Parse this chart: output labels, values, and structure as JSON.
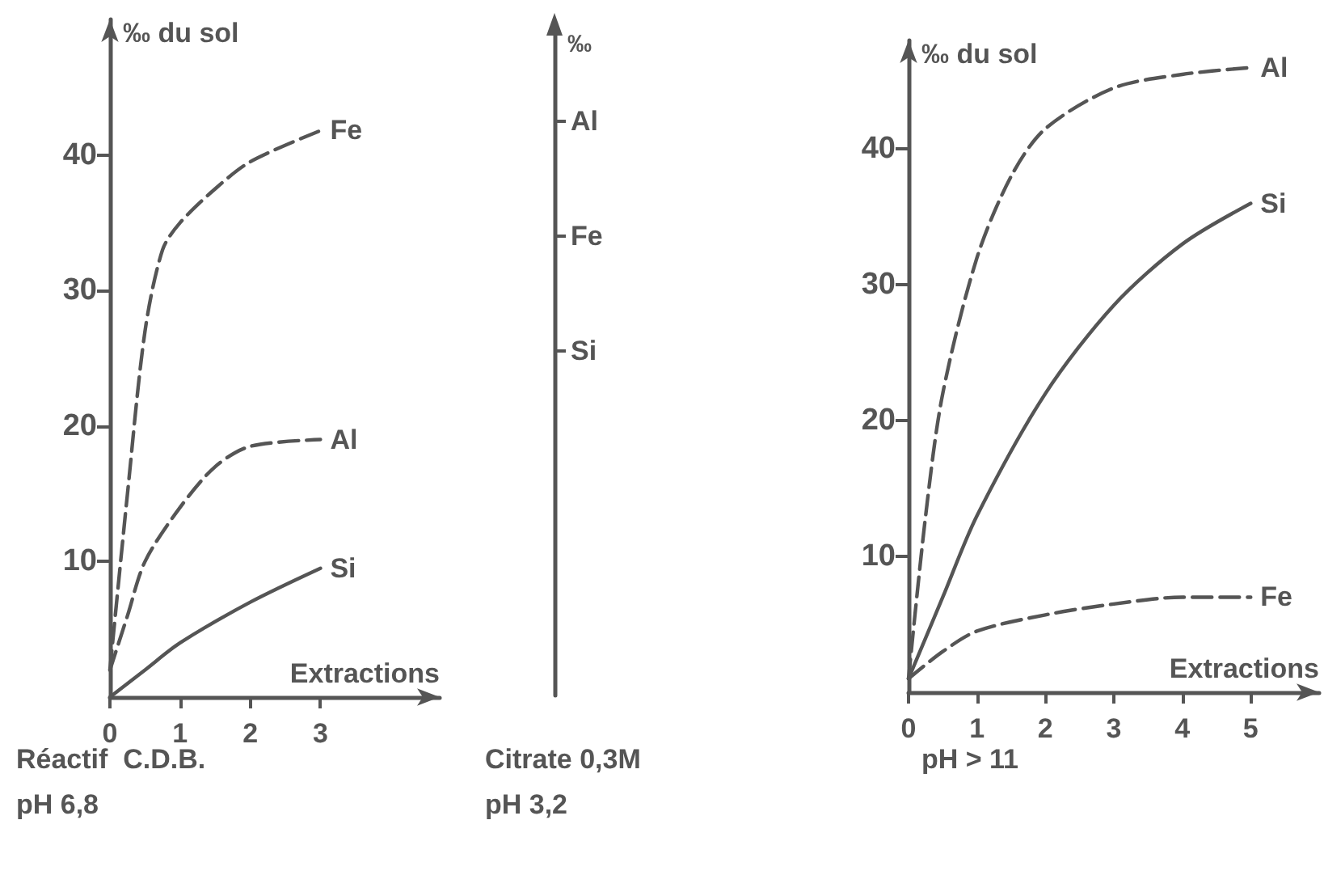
{
  "chart_data": [
    {
      "type": "line",
      "ylabel": "‰ du sol",
      "xlabel": "Extractions",
      "xlim": [
        0,
        4.7
      ],
      "ylim": [
        0,
        50
      ],
      "xticks": [
        0,
        1,
        2,
        3
      ],
      "yticks": [
        10,
        20,
        30,
        40
      ],
      "grid": false,
      "legend": false,
      "marker": "none",
      "series": [
        {
          "name": "Fe",
          "color": "#555555",
          "line_style": "dashed",
          "x": [
            0,
            0.25,
            0.5,
            0.75,
            1,
            1.5,
            2,
            3
          ],
          "values": [
            2,
            15,
            27,
            33,
            35,
            37.5,
            39.5,
            41.8
          ]
        },
        {
          "name": "Al",
          "color": "#555555",
          "line_style": "dashed",
          "x": [
            0,
            0.25,
            0.5,
            1,
            1.5,
            2,
            3
          ],
          "values": [
            2,
            6,
            10,
            14,
            17,
            18.5,
            19
          ]
        },
        {
          "name": "Si",
          "color": "#555555",
          "line_style": "solid",
          "x": [
            0,
            0.5,
            1,
            2,
            3
          ],
          "values": [
            0,
            2,
            4,
            7,
            9.5
          ]
        }
      ],
      "annotations": [
        "Réactif  C.D.B.",
        "pH 6,8"
      ]
    },
    {
      "type": "other",
      "ylabel": "‰",
      "categories": [
        "Al",
        "Fe",
        "Si"
      ],
      "annotations": [
        "Citrate 0,3M",
        "pH 3,2"
      ]
    },
    {
      "type": "line",
      "ylabel": "‰ du sol",
      "xlabel": "Extractions",
      "xlim": [
        0,
        6
      ],
      "ylim": [
        0,
        48
      ],
      "xticks": [
        0,
        1,
        2,
        3,
        4,
        5
      ],
      "yticks": [
        10,
        20,
        30,
        40
      ],
      "grid": false,
      "legend": false,
      "marker": "none",
      "series": [
        {
          "name": "Al",
          "color": "#555555",
          "line_style": "dashed",
          "x": [
            0,
            0.25,
            0.5,
            1,
            1.5,
            2,
            3,
            4,
            5
          ],
          "values": [
            1,
            13,
            22,
            32,
            38,
            41.5,
            44.5,
            45.5,
            46
          ]
        },
        {
          "name": "Si",
          "color": "#555555",
          "line_style": "solid",
          "x": [
            0,
            0.5,
            1,
            2,
            3,
            4,
            5
          ],
          "values": [
            1,
            7,
            13,
            22,
            28.5,
            33,
            36
          ]
        },
        {
          "name": "Fe",
          "color": "#555555",
          "line_style": "dashed",
          "x": [
            0,
            0.5,
            1,
            2,
            3,
            4,
            5
          ],
          "values": [
            1,
            3,
            4.5,
            5.7,
            6.5,
            7,
            7
          ]
        }
      ],
      "annotations": [
        "pH > 11"
      ]
    }
  ]
}
